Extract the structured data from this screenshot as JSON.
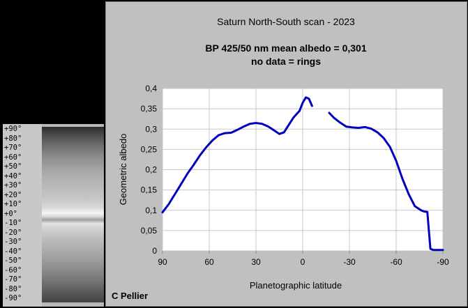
{
  "lat_strip": {
    "labels": [
      "+90°",
      "+80°",
      "+70°",
      "+60°",
      "+50°",
      "+40°",
      "+30°",
      "+20°",
      "+10°",
      "+0°",
      "-10°",
      "-20°",
      "-30°",
      "-40°",
      "-50°",
      "-60°",
      "-70°",
      "-80°",
      "-90°"
    ]
  },
  "chart_data": {
    "type": "line",
    "title": "Saturn North-South scan - 2023",
    "subtitle_line1": "BP 425/50 nm mean albedo = 0,301",
    "subtitle_line2": "no data = rings",
    "xlabel": "Planetographic latitude",
    "ylabel": "Geometric albedo",
    "xlim": [
      90,
      -90
    ],
    "ylim": [
      0,
      0.4
    ],
    "x_ticks": [
      "90",
      "60",
      "30",
      "0",
      "-30",
      "-60",
      "-90"
    ],
    "y_ticks": [
      "0",
      "0,05",
      "0,1",
      "0,15",
      "0,2",
      "0,25",
      "0,3",
      "0,35",
      "0,4"
    ],
    "grid": true,
    "legend": "none",
    "line_color": "#0000c0",
    "credit": "C Pellier",
    "series": [
      {
        "segments": [
          [
            [
              90,
              0.095
            ],
            [
              86,
              0.115
            ],
            [
              82,
              0.14
            ],
            [
              78,
              0.165
            ],
            [
              74,
              0.19
            ],
            [
              70,
              0.212
            ],
            [
              66,
              0.235
            ],
            [
              62,
              0.255
            ],
            [
              58,
              0.272
            ],
            [
              54,
              0.285
            ],
            [
              50,
              0.29
            ],
            [
              46,
              0.291
            ],
            [
              42,
              0.298
            ],
            [
              38,
              0.306
            ],
            [
              34,
              0.313
            ],
            [
              30,
              0.315
            ],
            [
              26,
              0.313
            ],
            [
              22,
              0.306
            ],
            [
              18,
              0.296
            ],
            [
              15,
              0.288
            ],
            [
              12,
              0.292
            ],
            [
              9,
              0.31
            ],
            [
              6,
              0.328
            ],
            [
              2,
              0.345
            ],
            [
              0,
              0.365
            ],
            [
              -2,
              0.378
            ],
            [
              -4,
              0.375
            ],
            [
              -6,
              0.357
            ]
          ],
          [
            [
              -17,
              0.34
            ],
            [
              -20,
              0.328
            ],
            [
              -24,
              0.316
            ],
            [
              -28,
              0.306
            ],
            [
              -32,
              0.304
            ],
            [
              -36,
              0.303
            ],
            [
              -40,
              0.305
            ],
            [
              -44,
              0.301
            ],
            [
              -48,
              0.292
            ],
            [
              -52,
              0.278
            ],
            [
              -56,
              0.256
            ],
            [
              -60,
              0.222
            ],
            [
              -64,
              0.178
            ],
            [
              -68,
              0.14
            ],
            [
              -72,
              0.11
            ],
            [
              -76,
              0.1
            ],
            [
              -78,
              0.097
            ],
            [
              -80,
              0.096
            ],
            [
              -81,
              0.05
            ],
            [
              -82,
              0.005
            ],
            [
              -84,
              0.002
            ],
            [
              -90,
              0.002
            ]
          ]
        ]
      }
    ]
  }
}
